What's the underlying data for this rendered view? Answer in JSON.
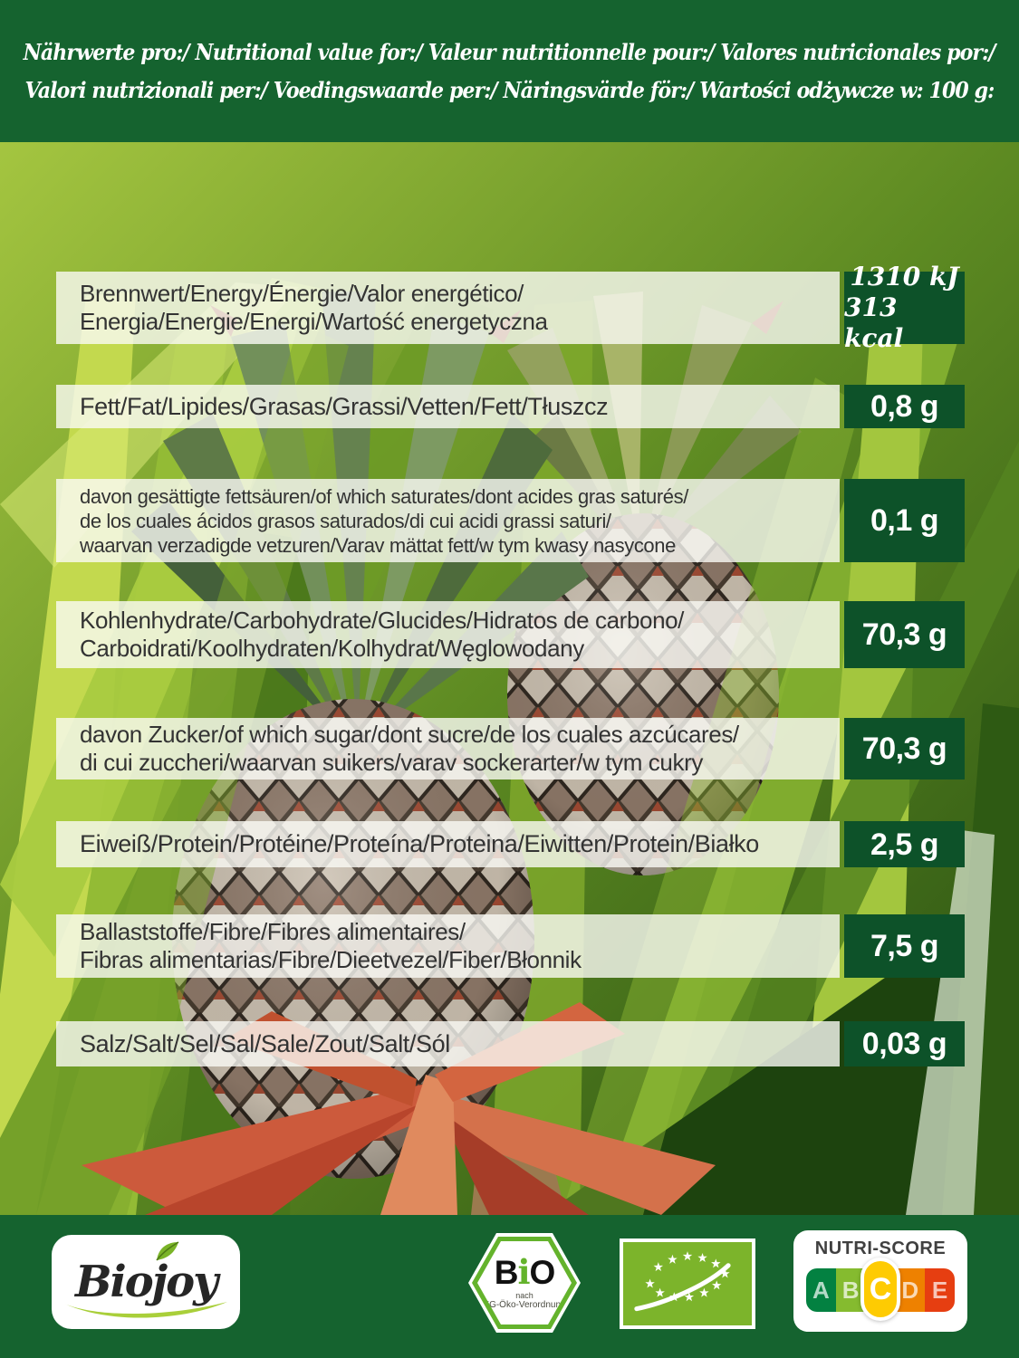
{
  "header": {
    "line1": "Nährwerte pro:/ Nutritional value for:/ Valeur nutritionnelle pour:/ Valores nutricionales por:/",
    "line2": "Valori nutrizionali per:/ Voedingswaarde per:/ Näringsvärde för:/ Wartości odżywcze w: 100 g:"
  },
  "rows": [
    {
      "nutrient": "energy",
      "label_lines": [
        "Brennwert/Energy/Énergie/Valor energético/",
        "Energia/Energie/Energi/Wartość energetyczna"
      ],
      "value_lines": [
        "1310 kJ",
        "313 kcal"
      ]
    },
    {
      "nutrient": "fat",
      "label_lines": [
        "Fett/Fat/Lipides/Grasas/Grassi/Vetten/Fett/Tłuszcz"
      ],
      "value_lines": [
        "0,8 g"
      ]
    },
    {
      "nutrient": "saturates",
      "label_lines": [
        "davon gesättigte fettsäuren/of which saturates/dont acides gras saturés/",
        "de los cuales ácidos grasos saturados/di cui acidi grassi saturi/",
        "waarvan verzadigde vetzuren/Varav mättat fett/w tym kwasy nasycone"
      ],
      "value_lines": [
        "0,1 g"
      ]
    },
    {
      "nutrient": "carbohydrate",
      "label_lines": [
        "Kohlenhydrate/Carbohydrate/Glucides/Hidratos de carbono/",
        "Carboidrati/Koolhydraten/Kolhydrat/Węglowodany"
      ],
      "value_lines": [
        "70,3 g"
      ]
    },
    {
      "nutrient": "sugars",
      "label_lines": [
        "davon Zucker/of which sugar/dont sucre/de los cuales azcúcares/",
        "di cui zuccheri/waarvan suikers/varav sockerarter/w tym cukry"
      ],
      "value_lines": [
        "70,3 g"
      ]
    },
    {
      "nutrient": "protein",
      "label_lines": [
        "Eiweiß/Protein/Protéine/Proteína/Proteina/Eiwitten/Protein/Białko"
      ],
      "value_lines": [
        "2,5 g"
      ]
    },
    {
      "nutrient": "fibre",
      "label_lines": [
        "Ballaststoffe/Fibre/Fibres alimentaires/",
        "Fibras alimentarias/Fibre/Dieetvezel/Fiber/Błonnik"
      ],
      "value_lines": [
        "7,5 g"
      ]
    },
    {
      "nutrient": "salt",
      "label_lines": [
        "Salz/Salt/Sel/Sal/Sale/Zout/Salt/Sól"
      ],
      "value_lines": [
        "0,03 g"
      ]
    }
  ],
  "footer": {
    "brand": "Biojoy",
    "bio_seal": {
      "letters": [
        "B",
        "i",
        "O"
      ],
      "subline1": "nach",
      "subline2": "EG-Öko-Verordnung"
    },
    "eu_organic_logo": "eu-organic-leaf",
    "nutri_score": {
      "title": "NUTRI-SCORE",
      "grades": [
        "A",
        "B",
        "C",
        "D",
        "E"
      ],
      "selected": "C"
    }
  },
  "colors": {
    "band_green": "#15632f",
    "value_box_green": "#0d5229",
    "label_box": "rgba(250,250,245,0.8)",
    "nutri_a": "#038141",
    "nutri_b": "#85bb2f",
    "nutri_c": "#fecb02",
    "nutri_d": "#ee8100",
    "nutri_e": "#e63e11",
    "bio_seal_green": "#64b32c",
    "eu_logo_green": "#7cb42b"
  }
}
